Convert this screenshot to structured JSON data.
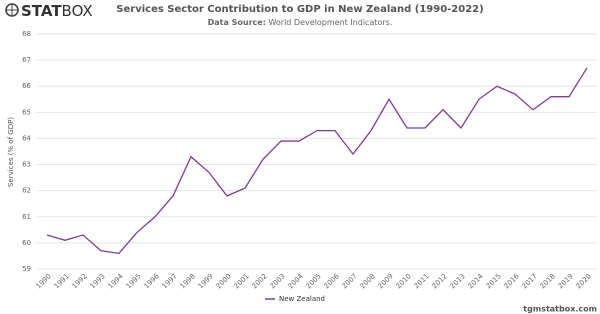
{
  "logo": {
    "bold": "STAT",
    "light": "BOX"
  },
  "footer": "tgmstatbox.com",
  "chart_data": {
    "type": "line",
    "title": "Services Sector Contribution to GDP in New Zealand (1990-2022)",
    "source_label": "Data Source:",
    "source": "World Development Indicators.",
    "y_label": "Services (% of GDP)",
    "categories": [
      "1990",
      "1991",
      "1992",
      "1993",
      "1994",
      "1995",
      "1996",
      "1997",
      "1998",
      "1999",
      "2000",
      "2001",
      "2002",
      "2003",
      "2004",
      "2005",
      "2006",
      "2007",
      "2008",
      "2009",
      "2010",
      "2011",
      "2012",
      "2013",
      "2014",
      "2015",
      "2016",
      "2017",
      "2018",
      "2019",
      "2020"
    ],
    "series": [
      {
        "name": "New Zealand",
        "color": "#7d3c98",
        "values": [
          60.3,
          60.1,
          60.3,
          59.7,
          59.6,
          60.4,
          61.0,
          61.8,
          63.3,
          62.7,
          61.8,
          62.1,
          63.2,
          63.9,
          63.9,
          64.3,
          64.3,
          63.4,
          64.3,
          65.5,
          64.4,
          64.4,
          65.1,
          64.4,
          65.5,
          66.0,
          65.7,
          65.1,
          65.6,
          65.6,
          66.7
        ]
      }
    ],
    "ylim": [
      59,
      68
    ],
    "yticks": [
      59,
      60,
      61,
      62,
      63,
      64,
      65,
      66,
      67,
      68
    ],
    "grid": true,
    "legend": "bottom"
  }
}
